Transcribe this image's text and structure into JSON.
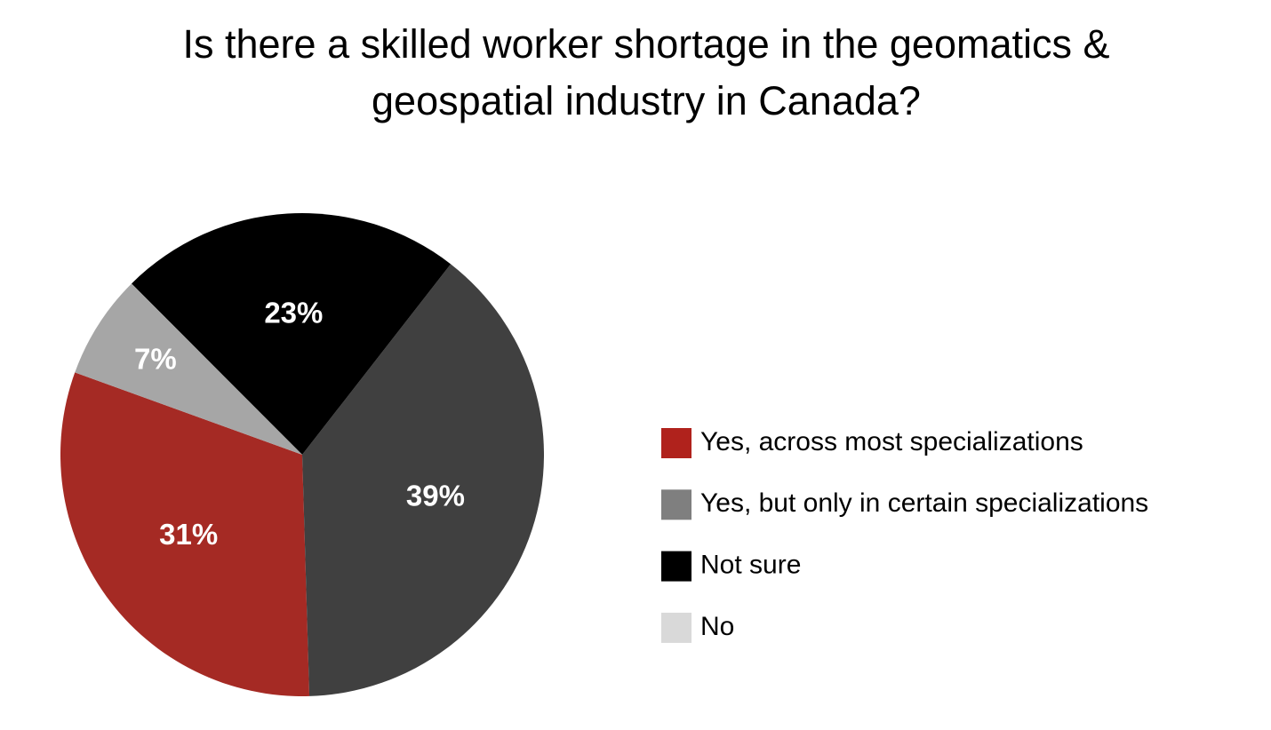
{
  "chart_data": {
    "type": "pie",
    "title": "Is there a skilled worker shortage in the geomatics & geospatial industry in Canada?",
    "categories": [
      "Yes, across most specializations",
      "Yes, but only in certain specializations",
      "Not sure",
      "No"
    ],
    "values": [
      31,
      39,
      23,
      7
    ],
    "value_labels": [
      "31%",
      "39%",
      "23%",
      "7%"
    ],
    "colors": [
      "#a52a24",
      "#404040",
      "#000000",
      "#a6a6a6"
    ],
    "legend_colors": [
      "#b0221c",
      "#7f7f7f",
      "#000000",
      "#d9d9d9"
    ]
  }
}
